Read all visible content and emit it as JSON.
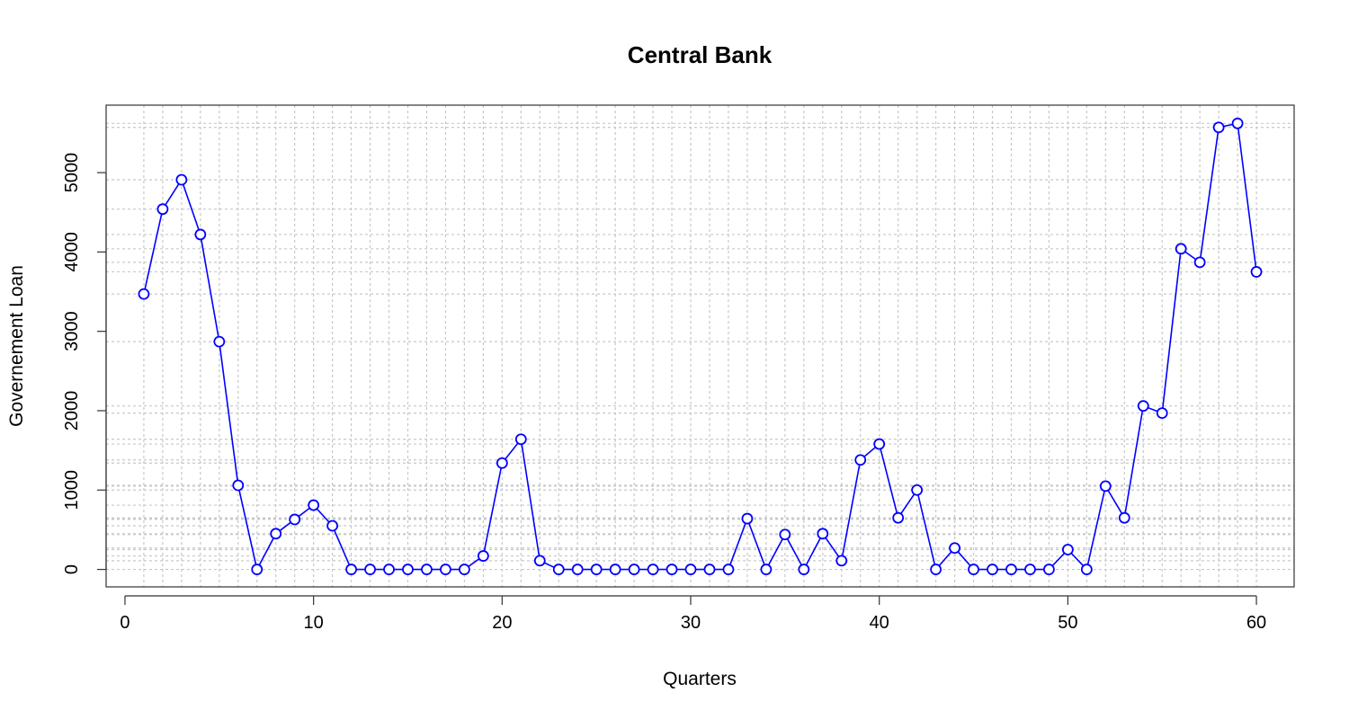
{
  "chart_data": {
    "type": "line",
    "title": "Central Bank",
    "xlabel": "Quarters",
    "ylabel": "Governement Loan",
    "xlim": [
      -1,
      62
    ],
    "ylim": [
      -220,
      5850
    ],
    "x_ticks": [
      0,
      10,
      20,
      30,
      40,
      50,
      60
    ],
    "y_ticks": [
      0,
      1000,
      2000,
      3000,
      4000,
      5000
    ],
    "grid": true,
    "series": [
      {
        "color": "#0000ff",
        "marker": "open-circle",
        "x": [
          1,
          2,
          3,
          4,
          5,
          6,
          7,
          8,
          9,
          10,
          11,
          12,
          13,
          14,
          15,
          16,
          17,
          18,
          19,
          20,
          21,
          22,
          23,
          24,
          25,
          26,
          27,
          28,
          29,
          30,
          31,
          32,
          33,
          34,
          35,
          36,
          37,
          38,
          39,
          40,
          41,
          42,
          43,
          44,
          45,
          46,
          47,
          48,
          49,
          50,
          51,
          52,
          53,
          54,
          55,
          56,
          57,
          58,
          59,
          60
        ],
        "values": [
          3470,
          4540,
          4910,
          4220,
          2870,
          1060,
          0,
          450,
          630,
          810,
          550,
          0,
          0,
          0,
          0,
          0,
          0,
          0,
          170,
          1340,
          1640,
          110,
          0,
          0,
          0,
          0,
          0,
          0,
          0,
          0,
          0,
          0,
          640,
          0,
          440,
          0,
          450,
          110,
          1380,
          1580,
          650,
          1000,
          0,
          270,
          0,
          0,
          0,
          0,
          0,
          250,
          0,
          1050,
          650,
          2060,
          1970,
          4040,
          3870,
          5570,
          5620,
          3750
        ]
      }
    ]
  }
}
